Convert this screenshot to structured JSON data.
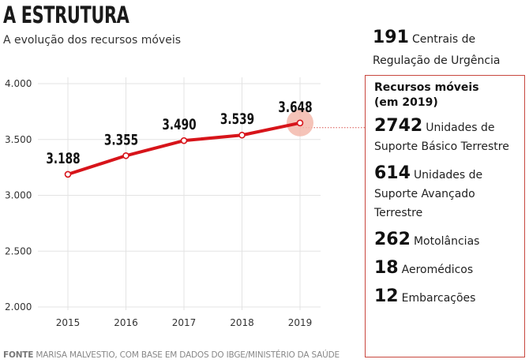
{
  "header": {
    "title": "A ESTRUTURA",
    "subtitle": "A evolução dos recursos móveis"
  },
  "chart_data": {
    "type": "line",
    "title": "A ESTRUTURA",
    "subtitle": "A evolução dos recursos móveis",
    "x": [
      "2015",
      "2016",
      "2017",
      "2018",
      "2019"
    ],
    "values": [
      3188,
      3355,
      3490,
      3539,
      3648
    ],
    "value_labels": [
      "3.188",
      "3.355",
      "3.490",
      "3.539",
      "3.648"
    ],
    "yticks": [
      2000,
      2500,
      3000,
      3500,
      4000
    ],
    "ytick_labels": [
      "2.000",
      "2.500",
      "3.000",
      "3.500",
      "4.000"
    ],
    "ylim": [
      2000,
      4000
    ],
    "xlabel": "",
    "ylabel": "",
    "grid": true,
    "highlight_index": 4,
    "colors": {
      "line": "#d7141a",
      "highlight": "#f3b8ab",
      "grid": "#e3e3e3",
      "connector": "#d9534f"
    }
  },
  "top_stat": {
    "number": "191",
    "label": "Centrais de Regulação de Urgência"
  },
  "resources_box": {
    "heading": "Recursos móveis\n(em 2019)",
    "items": [
      {
        "number": "2742",
        "label": "Unidades de Suporte Básico Terrestre"
      },
      {
        "number": "614",
        "label": "Unidades de Suporte Avançado Terrestre"
      },
      {
        "number": "262",
        "label": "Motolâncias"
      },
      {
        "number": "18",
        "label": "Aeromédicos"
      },
      {
        "number": "12",
        "label": "Embarcações"
      }
    ],
    "border_color": "#c8473f"
  },
  "source": {
    "prefix": "FONTE",
    "text": "MARISA MALVESTIO, COM BASE EM DADOS DO IBGE/MINISTÉRIO DA SAÚDE"
  }
}
